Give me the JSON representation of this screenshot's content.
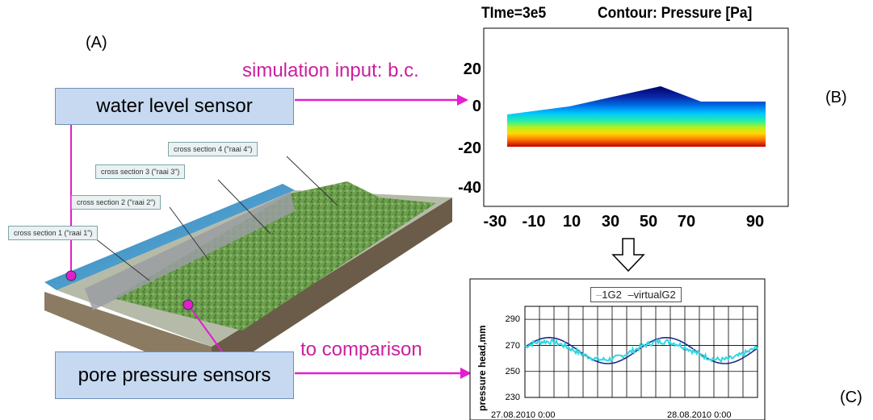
{
  "labels": {
    "a": "(A)",
    "b": "(B)",
    "c": "(C)"
  },
  "sensors": {
    "water": "water level sensor",
    "pore": "pore pressure sensors"
  },
  "arrows": {
    "input": "simulation input: b.c.",
    "compare": "to comparison"
  },
  "cross_sections": [
    "cross section 1 (\"raai 1\")",
    "cross section 2 (\"raai 2\")",
    "cross section 3 (\"raai 3\")",
    "cross section 4 (\"raai 4\")"
  ],
  "simulation": {
    "title": "TIme=3e5",
    "contour": "Contour: Pressure [Pa]",
    "y_ticks": [
      "20",
      "0",
      "-20",
      "-40"
    ],
    "x_ticks": [
      "-30",
      "-10",
      "10",
      "30",
      "50",
      "70",
      "90"
    ]
  },
  "chart_data": {
    "type": "line",
    "ylabel": "pressure head,mm",
    "ylim": [
      230,
      300
    ],
    "y_ticks": [
      "290",
      "270",
      "250",
      "230"
    ],
    "x_ticks": [
      "27.08.2010 0:00",
      "28.08.2010 0:00"
    ],
    "legend_placement": "top",
    "series": [
      {
        "name": "1G2",
        "color": "#33d6e0"
      },
      {
        "name": "virtualG2",
        "color": "#1f2a8c"
      }
    ]
  },
  "colors": {
    "accent": "#e21fd0",
    "arrow_text": "#cc1f9e",
    "box": "#c6d9f1"
  }
}
